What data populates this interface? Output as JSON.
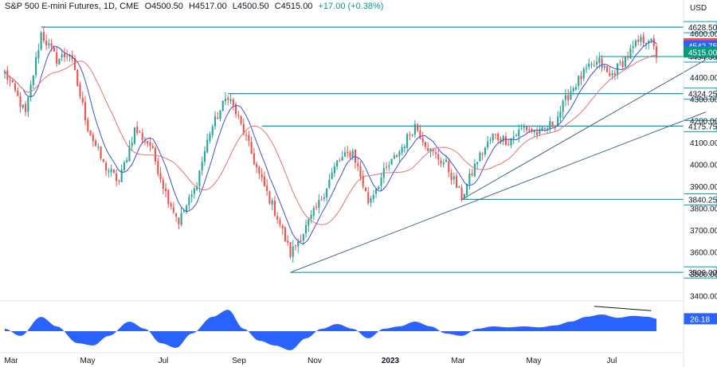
{
  "header": {
    "symbol": "S&P 500 E-mini Futures, 1D, CME",
    "open": "O4500.50",
    "high": "H4517.00",
    "low": "L4500.50",
    "close": "C4515.00",
    "change": "+17.00 (+0.38%)"
  },
  "currency": "USD",
  "colors": {
    "up": "#26a69a",
    "down": "#ef5350",
    "level_line": "#00a0b0",
    "trendline": "#4a6a8a",
    "ma_fast": "#3f51d6",
    "ma_slow": "#e57373",
    "oscillator": "#2962ff",
    "highlight_red": "#ef5350",
    "highlight_blue": "#2962ff",
    "highlight_green": "#089981"
  },
  "chart_data": [
    {
      "type": "candlestick",
      "title": "S&P 500 E-mini Futures, 1D, CME",
      "ylim": [
        3350,
        4680
      ],
      "y_ticks": [
        3400,
        3500,
        3600,
        3700,
        3800,
        3900,
        4000,
        4100,
        4200,
        4300,
        4400,
        4500,
        4600
      ],
      "x_ticks": [
        "Mar",
        "May",
        "Jul",
        "Sep",
        "Nov",
        "2023",
        "Mar",
        "May",
        "Jul"
      ],
      "anchors": [
        {
          "t": 0,
          "p": 4420
        },
        {
          "t": 4,
          "p": 4330
        },
        {
          "t": 8,
          "p": 4230
        },
        {
          "t": 14,
          "p": 4600
        },
        {
          "t": 20,
          "p": 4480
        },
        {
          "t": 25,
          "p": 4510
        },
        {
          "t": 32,
          "p": 4170
        },
        {
          "t": 38,
          "p": 4000
        },
        {
          "t": 44,
          "p": 3920
        },
        {
          "t": 50,
          "p": 4160
        },
        {
          "t": 56,
          "p": 4090
        },
        {
          "t": 62,
          "p": 3870
        },
        {
          "t": 67,
          "p": 3740
        },
        {
          "t": 73,
          "p": 3880
        },
        {
          "t": 79,
          "p": 4150
        },
        {
          "t": 86,
          "p": 4320
        },
        {
          "t": 92,
          "p": 4150
        },
        {
          "t": 98,
          "p": 3950
        },
        {
          "t": 105,
          "p": 3760
        },
        {
          "t": 110,
          "p": 3590
        },
        {
          "t": 115,
          "p": 3690
        },
        {
          "t": 121,
          "p": 3820
        },
        {
          "t": 128,
          "p": 4010
        },
        {
          "t": 134,
          "p": 4060
        },
        {
          "t": 140,
          "p": 3830
        },
        {
          "t": 146,
          "p": 3960
        },
        {
          "t": 152,
          "p": 4060
        },
        {
          "t": 158,
          "p": 4180
        },
        {
          "t": 164,
          "p": 4060
        },
        {
          "t": 170,
          "p": 4000
        },
        {
          "t": 176,
          "p": 3850
        },
        {
          "t": 182,
          "p": 4020
        },
        {
          "t": 188,
          "p": 4130
        },
        {
          "t": 194,
          "p": 4110
        },
        {
          "t": 200,
          "p": 4170
        },
        {
          "t": 206,
          "p": 4140
        },
        {
          "t": 212,
          "p": 4200
        },
        {
          "t": 218,
          "p": 4340
        },
        {
          "t": 224,
          "p": 4430
        },
        {
          "t": 229,
          "p": 4470
        },
        {
          "t": 233,
          "p": 4400
        },
        {
          "t": 238,
          "p": 4470
        },
        {
          "t": 244,
          "p": 4560
        },
        {
          "t": 248,
          "p": 4580
        },
        {
          "t": 251,
          "p": 4500
        }
      ],
      "total_bars": 252,
      "levels": [
        {
          "label": "4628.50",
          "value": 4628.5,
          "from": 14
        },
        {
          "label": "4324.25",
          "value": 4324.25,
          "from": 86
        },
        {
          "label": "4175.75",
          "value": 4175.75,
          "from": 99
        },
        {
          "label": "3840.25",
          "value": 3840.25,
          "from": 176
        },
        {
          "label": "3506.00",
          "value": 3506.0,
          "from": 110
        },
        {
          "label": "4494.00",
          "value": 4494.0,
          "from": 229
        }
      ],
      "trendlines": [
        {
          "t0": 110,
          "p0": 3506,
          "t1": 270,
          "p1": 4240
        },
        {
          "t0": 176,
          "p0": 3840,
          "t1": 270,
          "p1": 4480
        }
      ],
      "price_labels": [
        {
          "label": "4552.75",
          "value": 4552.75,
          "color": "highlight_red"
        },
        {
          "label": "4542.75",
          "value": 4542.75,
          "color": "highlight_blue"
        },
        {
          "label": "4515.00",
          "value": 4515.0,
          "color": "highlight_green"
        }
      ]
    },
    {
      "type": "area",
      "title": "",
      "current_value": "26.18",
      "ylim": [
        -40,
        60
      ],
      "phases": [
        {
          "t": 0,
          "v": 5
        },
        {
          "t": 6,
          "v": -10
        },
        {
          "t": 14,
          "v": 30
        },
        {
          "t": 20,
          "v": 10
        },
        {
          "t": 28,
          "v": -25
        },
        {
          "t": 34,
          "v": -30
        },
        {
          "t": 40,
          "v": -10
        },
        {
          "t": 48,
          "v": 20
        },
        {
          "t": 54,
          "v": 5
        },
        {
          "t": 60,
          "v": -25
        },
        {
          "t": 66,
          "v": -35
        },
        {
          "t": 72,
          "v": -5
        },
        {
          "t": 80,
          "v": 30
        },
        {
          "t": 86,
          "v": 45
        },
        {
          "t": 92,
          "v": 5
        },
        {
          "t": 98,
          "v": -20
        },
        {
          "t": 104,
          "v": -30
        },
        {
          "t": 110,
          "v": -40
        },
        {
          "t": 116,
          "v": -15
        },
        {
          "t": 122,
          "v": 5
        },
        {
          "t": 128,
          "v": 15
        },
        {
          "t": 134,
          "v": 5
        },
        {
          "t": 140,
          "v": -15
        },
        {
          "t": 146,
          "v": 5
        },
        {
          "t": 152,
          "v": 10
        },
        {
          "t": 158,
          "v": 20
        },
        {
          "t": 164,
          "v": 10
        },
        {
          "t": 170,
          "v": -5
        },
        {
          "t": 176,
          "v": -10
        },
        {
          "t": 182,
          "v": 5
        },
        {
          "t": 188,
          "v": 10
        },
        {
          "t": 194,
          "v": 8
        },
        {
          "t": 200,
          "v": 10
        },
        {
          "t": 206,
          "v": 8
        },
        {
          "t": 212,
          "v": 12
        },
        {
          "t": 218,
          "v": 20
        },
        {
          "t": 224,
          "v": 30
        },
        {
          "t": 230,
          "v": 35
        },
        {
          "t": 236,
          "v": 28
        },
        {
          "t": 242,
          "v": 32
        },
        {
          "t": 248,
          "v": 30
        },
        {
          "t": 251,
          "v": 26
        }
      ],
      "divergence_line": {
        "t0": 227,
        "v0": 52,
        "t1": 249,
        "v1": 43
      }
    }
  ]
}
